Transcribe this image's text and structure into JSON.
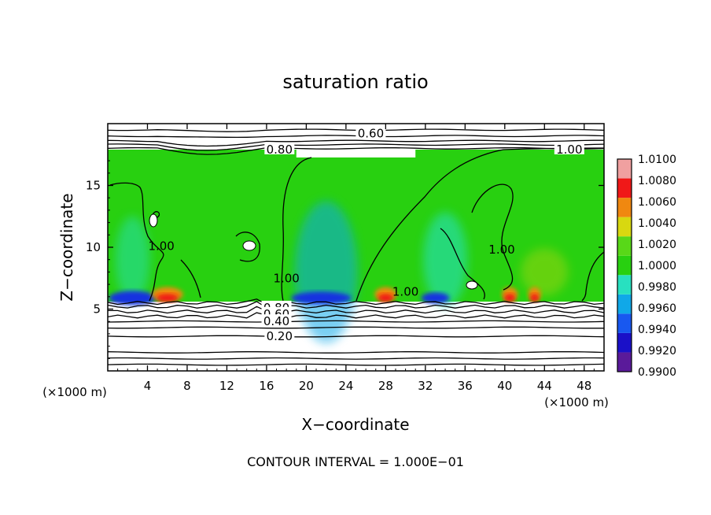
{
  "chart_data": {
    "type": "heatmap",
    "title": "saturation ratio",
    "xlabel": "X−coordinate",
    "ylabel": "Z−coordinate",
    "x_unit_label": "(×1000 m)",
    "y_unit_label": "(×1000 m)",
    "xlim": [
      0,
      50
    ],
    "ylim": [
      0,
      20
    ],
    "x_ticks": [
      "4",
      "8",
      "12",
      "16",
      "20",
      "24",
      "28",
      "32",
      "36",
      "40",
      "44",
      "48"
    ],
    "x_tick_values": [
      4,
      8,
      12,
      16,
      20,
      24,
      28,
      32,
      36,
      40,
      44,
      48
    ],
    "y_ticks": [
      "5",
      "10",
      "15"
    ],
    "y_tick_values": [
      5,
      10,
      15
    ],
    "footer": "CONTOUR INTERVAL = 1.000E−01",
    "colorbar": {
      "levels": [
        "0.9900",
        "0.9920",
        "0.9940",
        "0.9960",
        "0.9980",
        "1.0000",
        "1.0020",
        "1.0040",
        "1.0060",
        "1.0080",
        "1.0100"
      ],
      "colors": [
        "#5a1a9a",
        "#1a10c8",
        "#1858f0",
        "#10a8e8",
        "#28e0c0",
        "#28d010",
        "#58d818",
        "#d8d810",
        "#f08810",
        "#f01818",
        "#f0a0a0"
      ]
    },
    "field_colors": {
      "background": "#28d010",
      "subsaturated": "#1830e0",
      "supersaturated": "#f01818",
      "dry": "#ffffff"
    },
    "contour_labels": [
      {
        "text": "0.60",
        "x": 26.5,
        "z": 19.2
      },
      {
        "text": "0.80",
        "x": 17.3,
        "z": 17.9
      },
      {
        "text": "1.00",
        "x": 46.5,
        "z": 17.9
      },
      {
        "text": "1.00",
        "x": 5.4,
        "z": 10.1
      },
      {
        "text": "1.00",
        "x": 18.0,
        "z": 7.5
      },
      {
        "text": "1.00",
        "x": 30.0,
        "z": 6.4
      },
      {
        "text": "1.00",
        "x": 39.7,
        "z": 9.8
      },
      {
        "text": "0.80",
        "x": 17.0,
        "z": 5.1
      },
      {
        "text": "0.60",
        "x": 17.0,
        "z": 4.6
      },
      {
        "text": "0.40",
        "x": 17.0,
        "z": 4.0
      },
      {
        "text": "0.20",
        "x": 17.3,
        "z": 2.8
      }
    ]
  }
}
